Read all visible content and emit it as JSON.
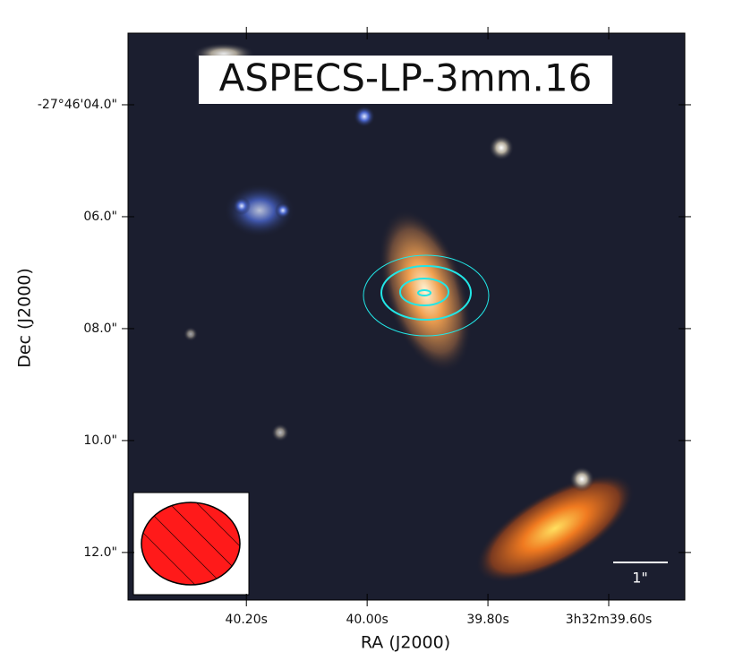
{
  "chart_data": {
    "type": "image",
    "title": "ASPECS-LP-3mm.16",
    "x_label": "RA (J2000)",
    "y_label": "Dec (J2000)",
    "xlim": [
      40.396,
      39.474
    ],
    "ylim": [
      2.72,
      12.85
    ],
    "xticks": [
      {
        "value": 40.2,
        "label": "40.20s"
      },
      {
        "value": 40.0,
        "label": "40.00s"
      },
      {
        "value": 39.8,
        "label": "39.80s"
      },
      {
        "value": 39.6,
        "label": "3h32m39.60s"
      }
    ],
    "yticks": [
      {
        "value": 4,
        "label": "-27°46'04.0\""
      },
      {
        "value": 6,
        "label": "06.0\""
      },
      {
        "value": 8,
        "label": "08.0\""
      },
      {
        "value": 10,
        "label": "10.0\""
      },
      {
        "value": 12,
        "label": "12.0\""
      }
    ],
    "scale_bar_label": "1\""
  }
}
